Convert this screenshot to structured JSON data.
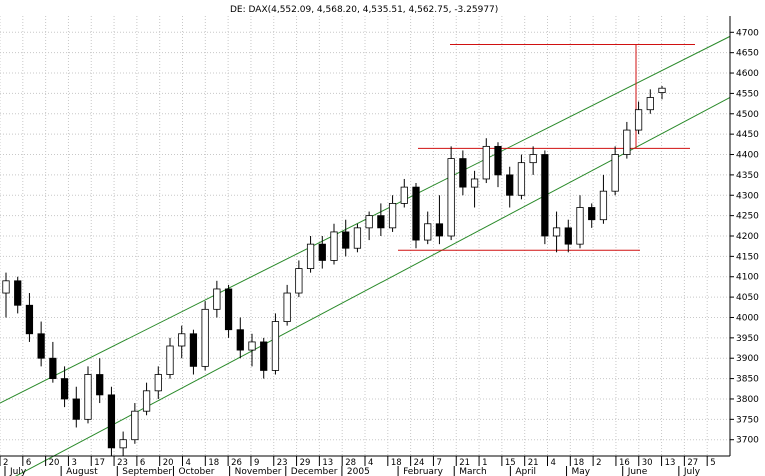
{
  "chart_data": {
    "type": "candlestick",
    "title": "DE: DAX(4,552.09, 4,568.20, 4,535.51, 4,562.75, -3.25977)",
    "ylim": [
      3660,
      4740
    ],
    "yticks": [
      3700,
      3750,
      3800,
      3850,
      3900,
      3950,
      4000,
      4050,
      4100,
      4150,
      4200,
      4250,
      4300,
      4350,
      4400,
      4450,
      4500,
      4550,
      4600,
      4650,
      4700
    ],
    "grid": true,
    "date_labels": [
      "2",
      "6",
      "20",
      "3",
      "17",
      "23",
      "6",
      "20",
      "4",
      "18",
      "26",
      "9",
      "23",
      "29",
      "13",
      "28",
      "4",
      "18",
      "24",
      "7",
      "21",
      "1",
      "15",
      "21",
      "4",
      "18",
      "2",
      "16",
      "30",
      "13",
      "27",
      "5"
    ],
    "month_labels": [
      "July",
      "August",
      "September",
      "October",
      "November",
      "December",
      "2005",
      "February",
      "March",
      "April",
      "May",
      "June",
      "July"
    ],
    "candles": [
      {
        "o": 4060,
        "h": 4110,
        "l": 4000,
        "c": 4090
      },
      {
        "o": 4090,
        "h": 4100,
        "l": 4010,
        "c": 4030
      },
      {
        "o": 4030,
        "h": 4060,
        "l": 3940,
        "c": 3960
      },
      {
        "o": 3960,
        "h": 3990,
        "l": 3880,
        "c": 3900
      },
      {
        "o": 3900,
        "h": 3940,
        "l": 3840,
        "c": 3850
      },
      {
        "o": 3850,
        "h": 3880,
        "l": 3780,
        "c": 3800
      },
      {
        "o": 3800,
        "h": 3830,
        "l": 3730,
        "c": 3750
      },
      {
        "o": 3750,
        "h": 3880,
        "l": 3740,
        "c": 3860
      },
      {
        "o": 3860,
        "h": 3900,
        "l": 3790,
        "c": 3810
      },
      {
        "o": 3810,
        "h": 3830,
        "l": 3660,
        "c": 3680
      },
      {
        "o": 3680,
        "h": 3720,
        "l": 3660,
        "c": 3700
      },
      {
        "o": 3700,
        "h": 3790,
        "l": 3690,
        "c": 3770
      },
      {
        "o": 3770,
        "h": 3840,
        "l": 3760,
        "c": 3820
      },
      {
        "o": 3820,
        "h": 3880,
        "l": 3800,
        "c": 3860
      },
      {
        "o": 3860,
        "h": 3950,
        "l": 3850,
        "c": 3930
      },
      {
        "o": 3930,
        "h": 3980,
        "l": 3900,
        "c": 3960
      },
      {
        "o": 3960,
        "h": 3970,
        "l": 3860,
        "c": 3880
      },
      {
        "o": 3880,
        "h": 4040,
        "l": 3870,
        "c": 4020
      },
      {
        "o": 4020,
        "h": 4090,
        "l": 4000,
        "c": 4070
      },
      {
        "o": 4070,
        "h": 4080,
        "l": 3950,
        "c": 3970
      },
      {
        "o": 3970,
        "h": 4000,
        "l": 3900,
        "c": 3920
      },
      {
        "o": 3920,
        "h": 3960,
        "l": 3880,
        "c": 3940
      },
      {
        "o": 3940,
        "h": 3950,
        "l": 3850,
        "c": 3870
      },
      {
        "o": 3870,
        "h": 4010,
        "l": 3860,
        "c": 3990
      },
      {
        "o": 3990,
        "h": 4080,
        "l": 3980,
        "c": 4060
      },
      {
        "o": 4060,
        "h": 4140,
        "l": 4050,
        "c": 4120
      },
      {
        "o": 4120,
        "h": 4200,
        "l": 4110,
        "c": 4180
      },
      {
        "o": 4180,
        "h": 4200,
        "l": 4120,
        "c": 4140
      },
      {
        "o": 4140,
        "h": 4230,
        "l": 4130,
        "c": 4210
      },
      {
        "o": 4210,
        "h": 4240,
        "l": 4150,
        "c": 4170
      },
      {
        "o": 4170,
        "h": 4230,
        "l": 4160,
        "c": 4220
      },
      {
        "o": 4220,
        "h": 4260,
        "l": 4190,
        "c": 4250
      },
      {
        "o": 4250,
        "h": 4280,
        "l": 4200,
        "c": 4220
      },
      {
        "o": 4220,
        "h": 4300,
        "l": 4210,
        "c": 4280
      },
      {
        "o": 4280,
        "h": 4340,
        "l": 4270,
        "c": 4320
      },
      {
        "o": 4320,
        "h": 4330,
        "l": 4170,
        "c": 4190
      },
      {
        "o": 4190,
        "h": 4260,
        "l": 4180,
        "c": 4230
      },
      {
        "o": 4230,
        "h": 4300,
        "l": 4180,
        "c": 4200
      },
      {
        "o": 4200,
        "h": 4420,
        "l": 4190,
        "c": 4390
      },
      {
        "o": 4390,
        "h": 4410,
        "l": 4300,
        "c": 4320
      },
      {
        "o": 4320,
        "h": 4360,
        "l": 4270,
        "c": 4340
      },
      {
        "o": 4340,
        "h": 4440,
        "l": 4330,
        "c": 4420
      },
      {
        "o": 4420,
        "h": 4430,
        "l": 4320,
        "c": 4350
      },
      {
        "o": 4350,
        "h": 4370,
        "l": 4270,
        "c": 4300
      },
      {
        "o": 4300,
        "h": 4400,
        "l": 4290,
        "c": 4380
      },
      {
        "o": 4380,
        "h": 4420,
        "l": 4350,
        "c": 4400
      },
      {
        "o": 4400,
        "h": 4410,
        "l": 4180,
        "c": 4200
      },
      {
        "o": 4200,
        "h": 4260,
        "l": 4160,
        "c": 4220
      },
      {
        "o": 4220,
        "h": 4240,
        "l": 4160,
        "c": 4180
      },
      {
        "o": 4180,
        "h": 4300,
        "l": 4170,
        "c": 4270
      },
      {
        "o": 4270,
        "h": 4280,
        "l": 4220,
        "c": 4240
      },
      {
        "o": 4240,
        "h": 4350,
        "l": 4230,
        "c": 4310
      },
      {
        "o": 4310,
        "h": 4420,
        "l": 4300,
        "c": 4400
      },
      {
        "o": 4400,
        "h": 4480,
        "l": 4390,
        "c": 4460
      },
      {
        "o": 4460,
        "h": 4530,
        "l": 4450,
        "c": 4510
      },
      {
        "o": 4510,
        "h": 4560,
        "l": 4500,
        "c": 4540
      },
      {
        "o": 4552.09,
        "h": 4568.2,
        "l": 4535.51,
        "c": 4562.75
      }
    ],
    "channel": {
      "upper": [
        [
          0,
          3790
        ],
        [
          1,
          4690
        ]
      ],
      "lower": [
        [
          0,
          3590
        ],
        [
          1,
          4540
        ]
      ]
    },
    "resistance_levels": [
      4670,
      4415,
      4165
    ]
  }
}
